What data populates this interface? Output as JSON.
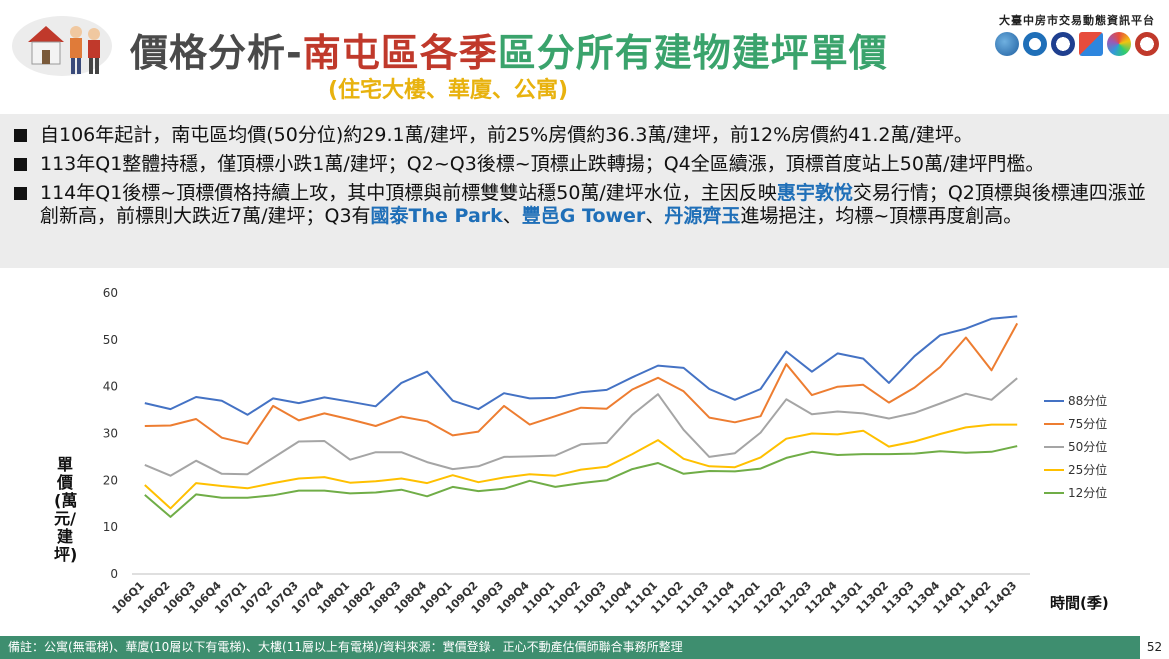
{
  "header": {
    "title_part1": "價格分析-",
    "title_part2": "南屯區各季",
    "title_part3": "區分所有建物建坪單價",
    "subtitle": "(住宅大樓、華廈、公寓)",
    "org": "大臺中房市交易動態資訊平台",
    "colors": {
      "grey": "#4a4a4a",
      "red": "#c0392b",
      "green": "#3aa36c",
      "gold": "#e8b20e"
    }
  },
  "bullets": [
    {
      "text": "自106年起計，南屯區均價(50分位)約29.1萬/建坪，前25%房價約36.3萬/建坪，前12%房價約41.2萬/建坪。"
    },
    {
      "text": "113年Q1整體持穩，僅頂標小跌1萬/建坪；Q2~Q3後標~頂標止跌轉揚；Q4全區續漲，頂標首度站上50萬/建坪門檻。"
    },
    {
      "t1": "114年Q1後標~頂標價格持續上攻，其中頂標與前標雙雙站穩50萬/建坪水位，主因反映",
      "h1": "惠宇敦悅",
      "t2": "交易行情；Q2頂標與後標連四漲並創新高，前標則大跌近7萬/建坪；Q3有",
      "h2": "國泰The Park",
      "t3": "、",
      "h3": "豐邑G Tower",
      "t4": "、",
      "h4": "丹源齊玉",
      "t5": "進場挹注，均標~頂標再度創高。"
    }
  ],
  "chart_data": {
    "type": "line",
    "ylabel": "單價(萬元/建坪)",
    "xlabel": "時間(季)",
    "ylim": [
      0,
      60
    ],
    "yticks": [
      0,
      10,
      20,
      30,
      40,
      50,
      60
    ],
    "grid": false,
    "legend_position": "right",
    "categories": [
      "106Q1",
      "106Q2",
      "106Q3",
      "106Q4",
      "107Q1",
      "107Q2",
      "107Q3",
      "107Q4",
      "108Q1",
      "108Q2",
      "108Q3",
      "108Q4",
      "109Q1",
      "109Q2",
      "109Q3",
      "109Q4",
      "110Q1",
      "110Q2",
      "110Q3",
      "110Q4",
      "111Q1",
      "111Q2",
      "111Q3",
      "111Q4",
      "112Q1",
      "112Q2",
      "112Q3",
      "112Q4",
      "113Q1",
      "113Q2",
      "113Q3",
      "113Q4",
      "114Q1",
      "114Q2",
      "114Q3"
    ],
    "series": [
      {
        "name": "88分位",
        "color": "#4472c4",
        "values": [
          36.5,
          35.2,
          37.8,
          37.0,
          34.0,
          37.5,
          36.5,
          37.7,
          36.8,
          35.8,
          40.8,
          43.2,
          37.0,
          35.2,
          38.6,
          37.5,
          37.6,
          38.8,
          39.3,
          42.0,
          44.5,
          44.0,
          39.5,
          37.2,
          39.5,
          47.5,
          43.2,
          47.1,
          46.0,
          40.8,
          46.5,
          51.0,
          52.4,
          54.5,
          55.0
        ]
      },
      {
        "name": "75分位",
        "color": "#ed7d31",
        "values": [
          31.6,
          31.7,
          33.1,
          29.1,
          27.8,
          35.9,
          32.8,
          34.3,
          33.0,
          31.6,
          33.6,
          32.6,
          29.6,
          30.4,
          35.9,
          31.9,
          33.7,
          35.5,
          35.3,
          39.4,
          41.9,
          39.0,
          33.4,
          32.4,
          33.7,
          44.8,
          38.2,
          40.0,
          40.4,
          36.6,
          39.8,
          44.2,
          50.5,
          43.5,
          53.5
        ]
      },
      {
        "name": "50分位",
        "color": "#a5a5a5",
        "values": [
          23.3,
          21.0,
          24.2,
          21.4,
          21.3,
          24.8,
          28.3,
          28.4,
          24.4,
          26.0,
          26.0,
          23.9,
          22.4,
          23.0,
          25.0,
          25.1,
          25.3,
          27.7,
          28.0,
          34.0,
          38.4,
          30.8,
          25.0,
          25.8,
          30.2,
          37.3,
          34.1,
          34.7,
          34.3,
          33.2,
          34.4,
          36.4,
          38.5,
          37.2,
          41.8
        ]
      },
      {
        "name": "25分位",
        "color": "#ffc000",
        "values": [
          19.0,
          14.0,
          19.4,
          18.8,
          18.3,
          19.4,
          20.4,
          20.7,
          19.5,
          19.8,
          20.4,
          19.4,
          21.1,
          19.6,
          20.6,
          21.3,
          21.0,
          22.3,
          22.9,
          25.6,
          28.6,
          24.6,
          23.0,
          22.8,
          24.9,
          28.9,
          30.0,
          29.8,
          30.6,
          27.2,
          28.3,
          29.9,
          31.3,
          31.9,
          31.9
        ]
      },
      {
        "name": "12分位",
        "color": "#70ad47",
        "values": [
          16.9,
          12.2,
          17.0,
          16.3,
          16.3,
          16.8,
          17.8,
          17.8,
          17.2,
          17.4,
          18.0,
          16.6,
          18.6,
          17.7,
          18.2,
          19.9,
          18.6,
          19.4,
          20.0,
          22.4,
          23.7,
          21.4,
          22.0,
          21.9,
          22.5,
          24.8,
          26.1,
          25.4,
          25.6,
          25.6,
          25.7,
          26.2,
          25.9,
          26.1,
          27.3
        ]
      }
    ]
  },
  "footer": {
    "note": "備註：公寓(無電梯)、華廈(10層以下有電梯)、大樓(11層以上有電梯)/資料來源：實價登錄．正心不動產估價師聯合事務所整理",
    "page": "52"
  }
}
